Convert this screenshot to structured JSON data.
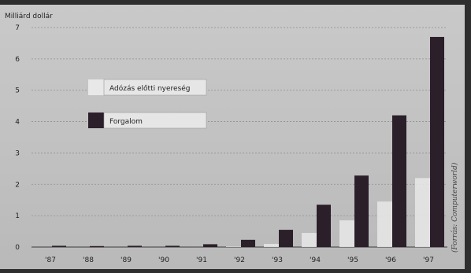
{
  "chart_data": {
    "type": "bar",
    "title": "",
    "ylabel": "Milliárd dollár",
    "xlabel": "",
    "ylim": [
      0,
      7
    ],
    "yticks": [
      0,
      1,
      2,
      3,
      4,
      5,
      6,
      7
    ],
    "grid": true,
    "legend_position": "middle-left",
    "categories": [
      "'87",
      "'88",
      "'89",
      "'90",
      "'91",
      "'92",
      "'93",
      "'94",
      "'95",
      "'96",
      "'97"
    ],
    "series": [
      {
        "name": "Adózás előtti nyereség",
        "color": "#e8e8e8",
        "values": [
          0.0,
          0.0,
          0.0,
          0.0,
          0.0,
          0.02,
          0.1,
          0.45,
          0.85,
          1.45,
          2.2
        ]
      },
      {
        "name": "Forgalom",
        "color": "#2b1f2a",
        "values": [
          0.04,
          0.03,
          0.04,
          0.04,
          0.09,
          0.23,
          0.55,
          1.35,
          2.28,
          4.2,
          6.7
        ]
      }
    ],
    "source": "(Forrás: Computerworld)"
  }
}
